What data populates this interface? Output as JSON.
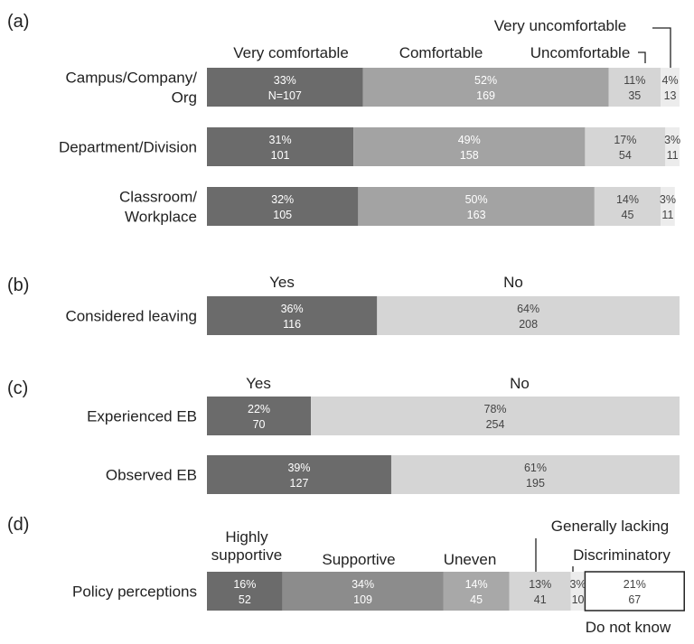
{
  "chart_data": [
    {
      "type": "bar",
      "stacked": true,
      "orientation": "horizontal",
      "panel_label": "(a)",
      "categories": [
        "Campus/Company/\nOrg",
        "Department/Division",
        "Classroom/\nWorkplace"
      ],
      "series": [
        {
          "name": "Very comfortable",
          "color": "#6b6b6b",
          "values": [
            33,
            31,
            32
          ],
          "counts": [
            "N=107",
            "101",
            "105"
          ]
        },
        {
          "name": "Comfortable",
          "color": "#a3a3a3",
          "values": [
            52,
            49,
            50
          ],
          "counts": [
            "169",
            "158",
            "163"
          ]
        },
        {
          "name": "Uncomfortable",
          "color": "#d5d5d5",
          "values": [
            11,
            17,
            14
          ],
          "counts": [
            "35",
            "54",
            "45"
          ]
        },
        {
          "name": "Very uncomfortable",
          "color": "#ececec",
          "values": [
            4,
            3,
            3
          ],
          "counts": [
            "13",
            "11",
            "11"
          ]
        }
      ]
    },
    {
      "type": "bar",
      "stacked": true,
      "orientation": "horizontal",
      "panel_label": "(b)",
      "categories": [
        "Considered leaving"
      ],
      "series": [
        {
          "name": "Yes",
          "color": "#6b6b6b",
          "values": [
            36
          ],
          "counts": [
            "116"
          ]
        },
        {
          "name": "No",
          "color": "#d5d5d5",
          "values": [
            64
          ],
          "counts": [
            "208"
          ]
        }
      ]
    },
    {
      "type": "bar",
      "stacked": true,
      "orientation": "horizontal",
      "panel_label": "(c)",
      "categories": [
        "Experienced EB",
        "Observed EB"
      ],
      "series": [
        {
          "name": "Yes",
          "color": "#6b6b6b",
          "values": [
            22,
            39
          ],
          "counts": [
            "70",
            "127"
          ]
        },
        {
          "name": "No",
          "color": "#d5d5d5",
          "values": [
            78,
            61
          ],
          "counts": [
            "254",
            "195"
          ]
        }
      ]
    },
    {
      "type": "bar",
      "stacked": true,
      "orientation": "horizontal",
      "panel_label": "(d)",
      "categories": [
        "Policy perceptions"
      ],
      "series": [
        {
          "name": "Highly\nsupportive",
          "color": "#6b6b6b",
          "values": [
            16
          ],
          "counts": [
            "52"
          ]
        },
        {
          "name": "Supportive",
          "color": "#8c8c8c",
          "values": [
            34
          ],
          "counts": [
            "109"
          ]
        },
        {
          "name": "Uneven",
          "color": "#a8a8a8",
          "values": [
            14
          ],
          "counts": [
            "45"
          ]
        },
        {
          "name": "Generally lacking",
          "color": "#d5d5d5",
          "values": [
            13
          ],
          "counts": [
            "41"
          ]
        },
        {
          "name": "Discriminatory",
          "color": "#ececec",
          "values": [
            3
          ],
          "counts": [
            "10"
          ]
        },
        {
          "name": "Do not know",
          "color": "#ffffff",
          "outline": "#222222",
          "values": [
            21
          ],
          "counts": [
            "67"
          ]
        }
      ]
    }
  ]
}
